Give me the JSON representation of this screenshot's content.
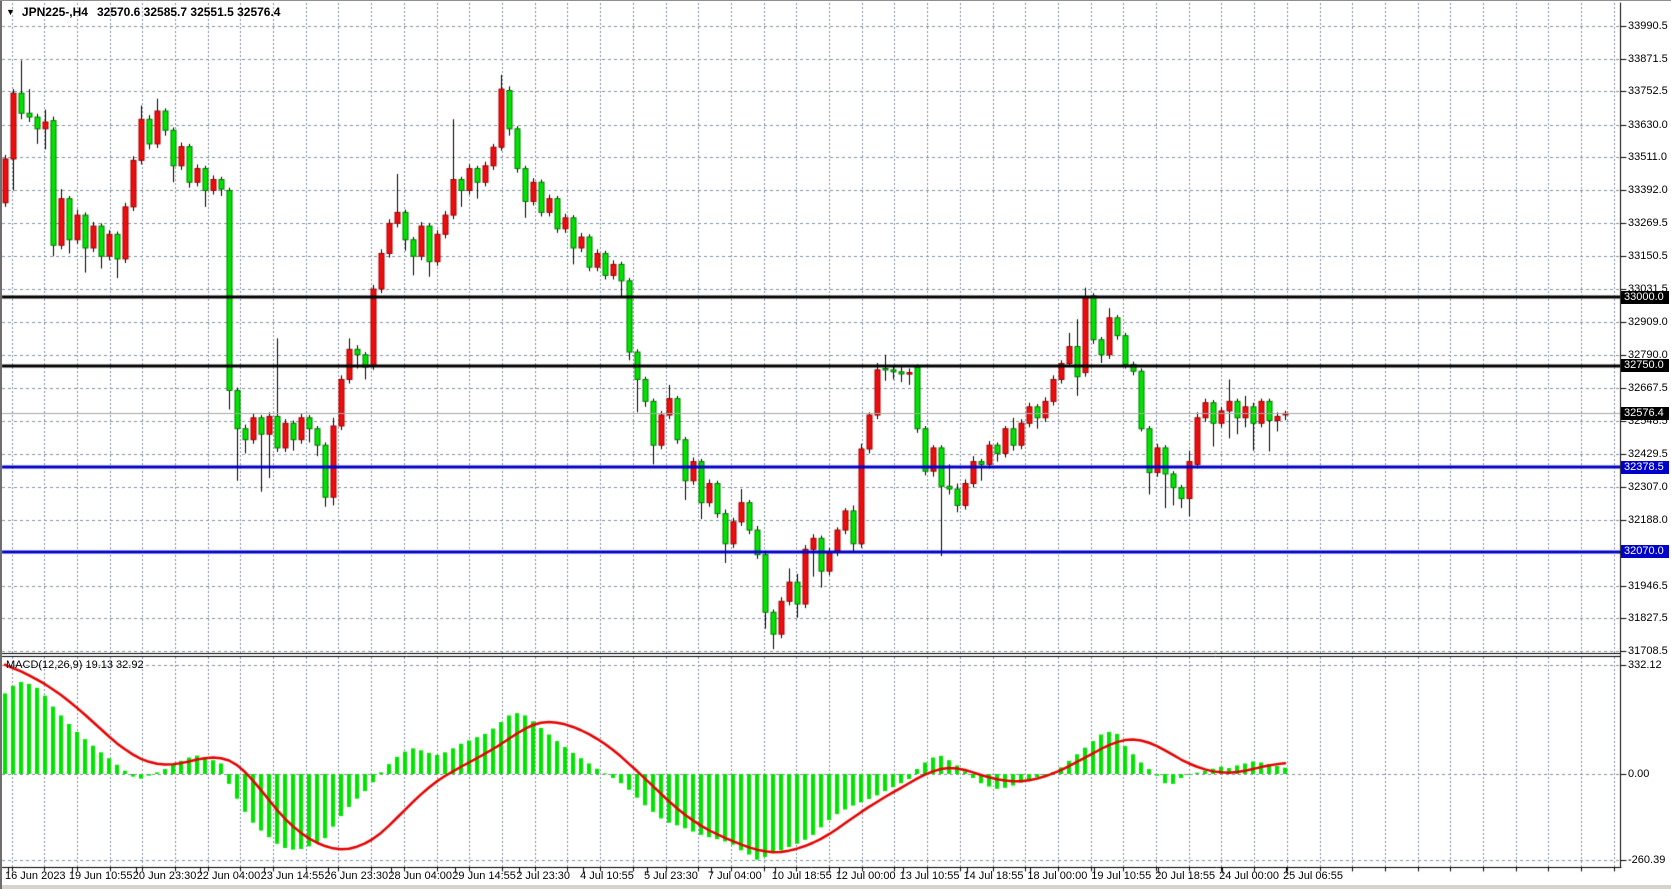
{
  "window": {
    "title_symbol": "JPN225-,H4",
    "title_quotes": "32570.6 32585.7 32551.5 32576.4",
    "dropdown_icon": "▼"
  },
  "colors": {
    "background": "#ffffff",
    "grid": "#8290a2",
    "candle_up_fill": "#f00d0d",
    "candle_up_stroke": "#9c0000",
    "candle_down_fill": "#00e400",
    "candle_down_stroke": "#007800",
    "wick": "#000000",
    "macd_histogram": "#00e400",
    "macd_signal": "#e60000",
    "hline_black": "#000000",
    "hline_blue": "#0000c8",
    "last_price_line": "#a8a8a8",
    "tag_black_bg": "#000000",
    "tag_blue_bg": "#0000c8",
    "axis_text": "#000000"
  },
  "chart_data": {
    "type": "candlestick+macd",
    "symbol": "JPN225-",
    "timeframe": "H4",
    "title": "JPN225-,H4",
    "last_ohlc": {
      "open": 32570.6,
      "high": 32585.7,
      "low": 32551.5,
      "close": 32576.4
    },
    "price_axis": {
      "grid_levels": [
        33990.5,
        33871.5,
        33752.5,
        33630.0,
        33511.0,
        33392.0,
        33269.5,
        33150.5,
        33031.5,
        32909.0,
        32790.0,
        32667.5,
        32548.5,
        32429.5,
        32307.0,
        32188.0,
        32070.0,
        31946.5,
        31827.5,
        31708.5
      ],
      "plain_labels": [
        "33990.5",
        "33871.5",
        "33752.5",
        "33630.0",
        "33511.0",
        "33392.0",
        "33269.5",
        "33150.5",
        "33031.5",
        "32909.0",
        "32790.0",
        "32667.5",
        "32548.5",
        "32429.5",
        "32307.0",
        "32188.0",
        "31946.5",
        "31827.5",
        "31708.5"
      ]
    },
    "price_tags": [
      {
        "text": "33000.0",
        "value": 33000.0,
        "style": "black"
      },
      {
        "text": "32750.0",
        "value": 32750.0,
        "style": "black"
      },
      {
        "text": "32576.4",
        "value": 32576.4,
        "style": "black"
      },
      {
        "text": "32378.5",
        "value": 32378.5,
        "style": "blue"
      },
      {
        "text": "32070.0",
        "value": 32070.0,
        "style": "blue"
      }
    ],
    "hlines": [
      {
        "price": 33000.0,
        "color": "black",
        "width": 3
      },
      {
        "price": 32750.0,
        "color": "black",
        "width": 3
      },
      {
        "price": 32378.5,
        "color": "blue",
        "width": 3
      },
      {
        "price": 32070.0,
        "color": "blue",
        "width": 3
      }
    ],
    "last_price_level": 32576.4,
    "time_labels": [
      "16 Jun 2023",
      "19 Jun 10:55",
      "20 Jun 23:30",
      "22 Jun 04:00",
      "23 Jun 14:55",
      "26 Jun 23:30",
      "28 Jun 04:00",
      "29 Jun 14:55",
      "2 Jul 23:30",
      "4 Jul 10:55",
      "5 Jul 23:30",
      "7 Jul 04:00",
      "10 Jul 18:55",
      "12 Jul 00:00",
      "13 Jul 10:55",
      "14 Jul 18:55",
      "18 Jul 00:00",
      "19 Jul 10:55",
      "20 Jul 18:55",
      "24 Jul 00:00",
      "25 Jul 06:55"
    ],
    "candles_ohlc": [
      [
        33345,
        33520,
        33330,
        33505
      ],
      [
        33505,
        33760,
        33390,
        33745
      ],
      [
        33745,
        33865,
        33650,
        33672
      ],
      [
        33672,
        33760,
        33640,
        33658
      ],
      [
        33658,
        33670,
        33560,
        33615
      ],
      [
        33615,
        33685,
        33540,
        33640
      ],
      [
        33645,
        33660,
        33150,
        33190
      ],
      [
        33190,
        33395,
        33175,
        33360
      ],
      [
        33360,
        33370,
        33160,
        33210
      ],
      [
        33210,
        33320,
        33195,
        33300
      ],
      [
        33300,
        33310,
        33090,
        33180
      ],
      [
        33180,
        33275,
        33165,
        33260
      ],
      [
        33260,
        33270,
        33105,
        33150
      ],
      [
        33150,
        33245,
        33135,
        33230
      ],
      [
        33230,
        33240,
        33070,
        33140
      ],
      [
        33140,
        33345,
        33125,
        33330
      ],
      [
        33330,
        33515,
        33315,
        33500
      ],
      [
        33500,
        33700,
        33485,
        33650
      ],
      [
        33650,
        33665,
        33540,
        33560
      ],
      [
        33560,
        33725,
        33545,
        33680
      ],
      [
        33680,
        33690,
        33590,
        33610
      ],
      [
        33610,
        33620,
        33420,
        33480
      ],
      [
        33480,
        33565,
        33465,
        33550
      ],
      [
        33550,
        33560,
        33400,
        33420
      ],
      [
        33420,
        33485,
        33405,
        33470
      ],
      [
        33470,
        33480,
        33330,
        33390
      ],
      [
        33390,
        33445,
        33375,
        33430
      ],
      [
        33430,
        33440,
        33370,
        33395
      ],
      [
        33390,
        33400,
        32590,
        32660
      ],
      [
        32660,
        32670,
        32330,
        32520
      ],
      [
        32520,
        32535,
        32430,
        32480
      ],
      [
        32480,
        32575,
        32465,
        32560
      ],
      [
        32560,
        32570,
        32290,
        32500
      ],
      [
        32500,
        32580,
        32340,
        32565
      ],
      [
        32565,
        32850,
        32435,
        32450
      ],
      [
        32450,
        32555,
        32435,
        32540
      ],
      [
        32540,
        32550,
        32440,
        32480
      ],
      [
        32480,
        32575,
        32465,
        32560
      ],
      [
        32560,
        32570,
        32470,
        32520
      ],
      [
        32520,
        32530,
        32420,
        32460
      ],
      [
        32460,
        32470,
        32235,
        32270
      ],
      [
        32270,
        32560,
        32240,
        32530
      ],
      [
        32530,
        32715,
        32515,
        32700
      ],
      [
        32700,
        32850,
        32685,
        32810
      ],
      [
        32810,
        32825,
        32740,
        32790
      ],
      [
        32790,
        32800,
        32700,
        32745
      ],
      [
        32748,
        33045,
        32735,
        33030
      ],
      [
        33030,
        33175,
        33015,
        33160
      ],
      [
        33160,
        33285,
        33145,
        33270
      ],
      [
        33270,
        33450,
        33255,
        33310
      ],
      [
        33310,
        33320,
        33170,
        33210
      ],
      [
        33210,
        33220,
        33080,
        33150
      ],
      [
        33150,
        33275,
        33135,
        33260
      ],
      [
        33260,
        33270,
        33075,
        33130
      ],
      [
        33130,
        33245,
        33115,
        33230
      ],
      [
        33230,
        33315,
        33215,
        33300
      ],
      [
        33300,
        33650,
        33285,
        33430
      ],
      [
        33430,
        33440,
        33330,
        33390
      ],
      [
        33390,
        33485,
        33375,
        33470
      ],
      [
        33470,
        33480,
        33360,
        33420
      ],
      [
        33420,
        33495,
        33405,
        33480
      ],
      [
        33480,
        33560,
        33465,
        33548
      ],
      [
        33548,
        33812,
        33535,
        33760
      ],
      [
        33755,
        33770,
        33590,
        33615
      ],
      [
        33615,
        33625,
        33455,
        33470
      ],
      [
        33470,
        33480,
        33290,
        33350
      ],
      [
        33350,
        33435,
        33335,
        33420
      ],
      [
        33420,
        33430,
        33295,
        33310
      ],
      [
        33310,
        33375,
        33295,
        33360
      ],
      [
        33360,
        33370,
        33235,
        33250
      ],
      [
        33250,
        33305,
        33235,
        33290
      ],
      [
        33290,
        33300,
        33120,
        33180
      ],
      [
        33180,
        33235,
        33165,
        33220
      ],
      [
        33220,
        33230,
        33095,
        33110
      ],
      [
        33110,
        33175,
        33095,
        33160
      ],
      [
        33160,
        33170,
        33065,
        33080
      ],
      [
        33080,
        33135,
        33065,
        33120
      ],
      [
        33120,
        33130,
        33000,
        33060
      ],
      [
        33060,
        33070,
        32770,
        32800
      ],
      [
        32800,
        32810,
        32580,
        32700
      ],
      [
        32700,
        32710,
        32600,
        32620
      ],
      [
        32620,
        32630,
        32390,
        32460
      ],
      [
        32460,
        32585,
        32445,
        32570
      ],
      [
        32570,
        32680,
        32555,
        32630
      ],
      [
        32630,
        32640,
        32465,
        32480
      ],
      [
        32480,
        32490,
        32260,
        32330
      ],
      [
        32330,
        32415,
        32315,
        32400
      ],
      [
        32400,
        32410,
        32190,
        32250
      ],
      [
        32250,
        32335,
        32235,
        32320
      ],
      [
        32320,
        32330,
        32195,
        32210
      ],
      [
        32210,
        32225,
        32030,
        32100
      ],
      [
        32100,
        32195,
        32085,
        32180
      ],
      [
        32180,
        32300,
        32165,
        32250
      ],
      [
        32250,
        32260,
        32135,
        32150
      ],
      [
        32150,
        32165,
        32045,
        32060
      ],
      [
        32060,
        32075,
        31790,
        31850
      ],
      [
        31850,
        31860,
        31715,
        31770
      ],
      [
        31770,
        31905,
        31755,
        31890
      ],
      [
        31890,
        32010,
        31875,
        31960
      ],
      [
        31960,
        31990,
        31830,
        31880
      ],
      [
        31880,
        32095,
        31865,
        32080
      ],
      [
        32080,
        32135,
        31980,
        32120
      ],
      [
        32120,
        32130,
        31940,
        32000
      ],
      [
        32000,
        32085,
        31985,
        32070
      ],
      [
        32070,
        32160,
        32055,
        32150
      ],
      [
        32150,
        32230,
        32135,
        32220
      ],
      [
        32220,
        32240,
        32070,
        32100
      ],
      [
        32100,
        32465,
        32085,
        32446
      ],
      [
        32446,
        32580,
        32430,
        32570
      ],
      [
        32570,
        32760,
        32555,
        32735
      ],
      [
        32740,
        32790,
        32695,
        32735
      ],
      [
        32735,
        32750,
        32700,
        32728
      ],
      [
        32728,
        32745,
        32690,
        32720
      ],
      [
        32720,
        32740,
        32680,
        32725
      ],
      [
        32745,
        32755,
        32505,
        32520
      ],
      [
        32520,
        32530,
        32350,
        32365
      ],
      [
        32365,
        32460,
        32345,
        32450
      ],
      [
        32450,
        32460,
        32055,
        32310
      ],
      [
        32310,
        32390,
        32280,
        32300
      ],
      [
        32300,
        32320,
        32215,
        32240
      ],
      [
        32240,
        32335,
        32225,
        32320
      ],
      [
        32320,
        32420,
        32305,
        32400
      ],
      [
        32400,
        32410,
        32330,
        32390
      ],
      [
        32390,
        32475,
        32375,
        32460
      ],
      [
        32460,
        32470,
        32400,
        32430
      ],
      [
        32430,
        32530,
        32415,
        32520
      ],
      [
        32520,
        32560,
        32440,
        32460
      ],
      [
        32460,
        32555,
        32445,
        32540
      ],
      [
        32540,
        32615,
        32525,
        32600
      ],
      [
        32600,
        32610,
        32520,
        32560
      ],
      [
        32560,
        32635,
        32545,
        32620
      ],
      [
        32620,
        32715,
        32605,
        32700
      ],
      [
        32700,
        32770,
        32685,
        32758
      ],
      [
        32758,
        32870,
        32745,
        32820
      ],
      [
        32820,
        32920,
        32640,
        32710
      ],
      [
        32725,
        33035,
        32710,
        33000
      ],
      [
        33005,
        33015,
        32830,
        32845
      ],
      [
        32845,
        32855,
        32760,
        32790
      ],
      [
        32790,
        32960,
        32775,
        32925
      ],
      [
        32925,
        32935,
        32845,
        32860
      ],
      [
        32860,
        32870,
        32740,
        32755
      ],
      [
        32755,
        32765,
        32715,
        32730
      ],
      [
        32730,
        32740,
        32510,
        32520
      ],
      [
        32520,
        32530,
        32280,
        32360
      ],
      [
        32360,
        32465,
        32345,
        32450
      ],
      [
        32450,
        32460,
        32230,
        32355
      ],
      [
        32355,
        32365,
        32240,
        32305
      ],
      [
        32305,
        32315,
        32230,
        32265
      ],
      [
        32265,
        32440,
        32200,
        32400
      ],
      [
        32390,
        32580,
        32375,
        32560
      ],
      [
        32560,
        32630,
        32545,
        32615
      ],
      [
        32615,
        32625,
        32455,
        32540
      ],
      [
        32540,
        32600,
        32525,
        32585
      ],
      [
        32585,
        32700,
        32485,
        32620
      ],
      [
        32620,
        32630,
        32500,
        32560
      ],
      [
        32560,
        32640,
        32525,
        32600
      ],
      [
        32600,
        32615,
        32440,
        32540
      ],
      [
        32540,
        32630,
        32525,
        32620
      ],
      [
        32620,
        32630,
        32437,
        32550
      ],
      [
        32550,
        32580,
        32510,
        32565
      ],
      [
        32570.6,
        32585.7,
        32551.5,
        32576.4
      ]
    ],
    "macd": {
      "label": "MACD(12,26,9)",
      "values_label": "19.13 32.92",
      "label_full": "MACD(12,26,9) 19.13 32.92",
      "main_value": 19.13,
      "signal_value": 32.92,
      "scale_labels": [
        "332.12",
        "0.00",
        "-260.39"
      ],
      "scale_max": 332.12,
      "scale_min": -260.39,
      "histogram": [
        245,
        268,
        280,
        274,
        262,
        238,
        205,
        178,
        152,
        128,
        106,
        86,
        66,
        48,
        28,
        10,
        -8,
        -14,
        -5,
        5,
        15,
        28,
        40,
        50,
        56,
        50,
        42,
        32,
        -30,
        -75,
        -115,
        -148,
        -172,
        -192,
        -212,
        -225,
        -230,
        -228,
        -220,
        -208,
        -195,
        -160,
        -128,
        -100,
        -75,
        -52,
        -25,
        5,
        30,
        52,
        68,
        78,
        72,
        64,
        58,
        66,
        78,
        92,
        102,
        112,
        122,
        138,
        158,
        178,
        185,
        178,
        160,
        140,
        120,
        100,
        82,
        64,
        48,
        32,
        16,
        2,
        -12,
        -28,
        -48,
        -72,
        -95,
        -115,
        -135,
        -148,
        -156,
        -165,
        -175,
        -185,
        -192,
        -198,
        -205,
        -215,
        -232,
        -245,
        -260.39,
        -252,
        -240,
        -232,
        -222,
        -212,
        -200,
        -185,
        -162,
        -140,
        -122,
        -108,
        -96,
        -86,
        -76,
        -65,
        -52,
        -40,
        -28,
        -15,
        15,
        35,
        50,
        55,
        42,
        26,
        8,
        -12,
        -28,
        -38,
        -45,
        -42,
        -35,
        -26,
        -18,
        -10,
        -4,
        6,
        20,
        40,
        60,
        80,
        100,
        120,
        128,
        122,
        85,
        60,
        35,
        15,
        -5,
        -28,
        -30,
        -12,
        -3,
        4,
        10,
        16,
        22,
        18,
        26,
        32,
        38,
        35,
        30,
        25,
        19.13
      ],
      "signal": [
        332.12,
        322,
        312,
        300,
        287,
        273,
        257,
        240,
        221,
        201,
        180,
        158,
        136,
        114,
        93,
        75,
        59,
        46,
        37,
        31,
        29,
        30,
        33,
        38,
        44,
        48,
        50,
        48,
        41,
        27,
        6,
        -20,
        -49,
        -79,
        -109,
        -136,
        -159,
        -179,
        -196,
        -209,
        -219,
        -226,
        -229,
        -227,
        -221,
        -211,
        -197,
        -179,
        -157,
        -133,
        -109,
        -85,
        -62,
        -41,
        -22,
        -6,
        8,
        22,
        35,
        48,
        62,
        76,
        91,
        107,
        123,
        137,
        149,
        156,
        158,
        156,
        151,
        143,
        133,
        121,
        107,
        91,
        73,
        53,
        31,
        9,
        -14,
        -37,
        -60,
        -83,
        -104,
        -124,
        -141,
        -157,
        -171,
        -183,
        -194,
        -204,
        -214,
        -223,
        -230,
        -235,
        -238,
        -237,
        -233,
        -227,
        -219,
        -209,
        -197,
        -183,
        -167,
        -150,
        -133,
        -116,
        -100,
        -85,
        -70,
        -56,
        -42,
        -28,
        -14,
        -2,
        8,
        15,
        18,
        17,
        12,
        5,
        -3,
        -10,
        -16,
        -20,
        -22,
        -22,
        -19,
        -14,
        -7,
        2,
        12,
        24,
        37,
        50,
        63,
        76,
        88,
        97,
        103,
        105,
        102,
        95,
        85,
        72,
        58,
        44,
        32,
        22,
        14,
        8,
        5,
        4,
        6,
        10,
        15,
        21,
        26,
        30,
        32.92
      ]
    }
  }
}
